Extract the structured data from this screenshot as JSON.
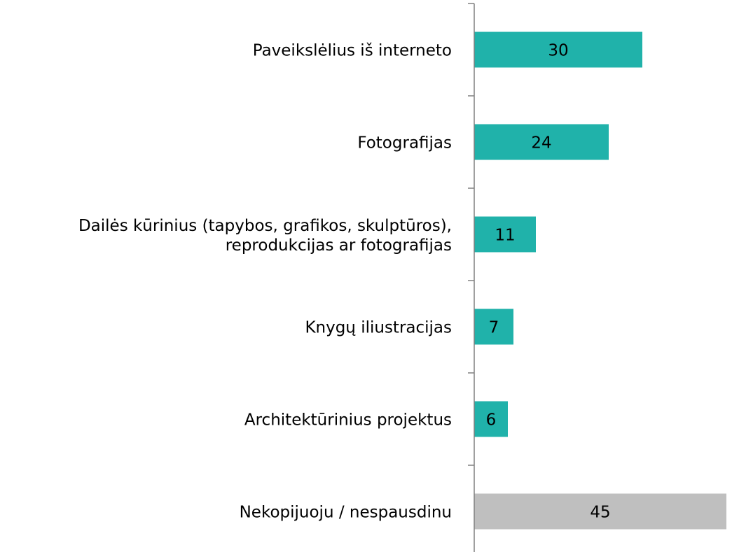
{
  "chart_data": {
    "type": "hbar",
    "categories": [
      "Paveikslėlius iš interneto",
      "Fotografijas",
      "Dailės kūrinius (tapybos, grafikos, skulptūros),\nreprodukcijas ar fotografijas",
      "Knygų iliustracijas",
      "Architektūrinius projektus",
      "Nekopijuoju / nespausdinu"
    ],
    "values": [
      30,
      24,
      11,
      7,
      6,
      45
    ],
    "colors": [
      "#20b2aa",
      "#20b2aa",
      "#20b2aa",
      "#20b2aa",
      "#20b2aa",
      "#bfbfbf"
    ],
    "xlim": [
      0,
      46
    ]
  }
}
